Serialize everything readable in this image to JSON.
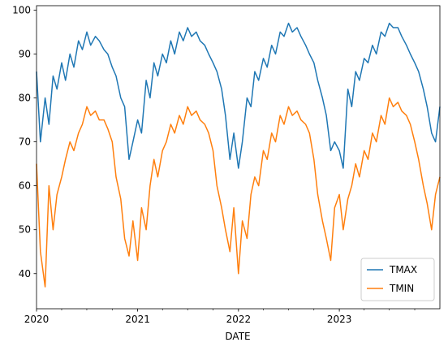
{
  "chart_data": {
    "type": "line",
    "xlabel": "DATE",
    "ylabel": "",
    "xlim": [
      "2020-01-01",
      "2023-12-31"
    ],
    "ylim": [
      32,
      101
    ],
    "yticks": [
      40,
      50,
      60,
      70,
      80,
      90,
      100
    ],
    "xticks": [
      {
        "date": "2020-01-01",
        "label": "2020"
      },
      {
        "date": "2021-01-01",
        "label": "2021"
      },
      {
        "date": "2022-01-01",
        "label": "2022"
      },
      {
        "date": "2023-01-01",
        "label": "2023"
      }
    ],
    "x_minor_ticks_months": [
      4,
      7,
      10
    ],
    "grid": false,
    "legend_position": "lower right",
    "series": [
      {
        "name": "TMAX",
        "color": "#1f77b4",
        "x": [
          "2020-01-01",
          "2020-01-15",
          "2020-02-01",
          "2020-02-15",
          "2020-03-01",
          "2020-03-15",
          "2020-04-01",
          "2020-04-15",
          "2020-05-01",
          "2020-05-15",
          "2020-06-01",
          "2020-06-15",
          "2020-07-01",
          "2020-07-15",
          "2020-08-01",
          "2020-08-15",
          "2020-09-01",
          "2020-09-15",
          "2020-10-01",
          "2020-10-15",
          "2020-11-01",
          "2020-11-15",
          "2020-12-01",
          "2020-12-15",
          "2021-01-01",
          "2021-01-15",
          "2021-02-01",
          "2021-02-15",
          "2021-03-01",
          "2021-03-15",
          "2021-04-01",
          "2021-04-15",
          "2021-05-01",
          "2021-05-15",
          "2021-06-01",
          "2021-06-15",
          "2021-07-01",
          "2021-07-15",
          "2021-08-01",
          "2021-08-15",
          "2021-09-01",
          "2021-09-15",
          "2021-10-01",
          "2021-10-15",
          "2021-11-01",
          "2021-11-15",
          "2021-12-01",
          "2021-12-15",
          "2022-01-01",
          "2022-01-15",
          "2022-02-01",
          "2022-02-15",
          "2022-03-01",
          "2022-03-15",
          "2022-04-01",
          "2022-04-15",
          "2022-05-01",
          "2022-05-15",
          "2022-06-01",
          "2022-06-15",
          "2022-07-01",
          "2022-07-15",
          "2022-08-01",
          "2022-08-15",
          "2022-09-01",
          "2022-09-15",
          "2022-10-01",
          "2022-10-15",
          "2022-11-01",
          "2022-11-15",
          "2022-12-01",
          "2022-12-15",
          "2023-01-01",
          "2023-01-15",
          "2023-02-01",
          "2023-02-15",
          "2023-03-01",
          "2023-03-15",
          "2023-04-01",
          "2023-04-15",
          "2023-05-01",
          "2023-05-15",
          "2023-06-01",
          "2023-06-15",
          "2023-07-01",
          "2023-07-15",
          "2023-08-01",
          "2023-08-15",
          "2023-09-01",
          "2023-09-15",
          "2023-10-01",
          "2023-10-15",
          "2023-11-01",
          "2023-11-15",
          "2023-12-01",
          "2023-12-15",
          "2023-12-31"
        ],
        "values": [
          86,
          70,
          80,
          74,
          85,
          82,
          88,
          84,
          90,
          87,
          93,
          91,
          95,
          92,
          94,
          93,
          91,
          90,
          87,
          85,
          80,
          78,
          66,
          70,
          75,
          72,
          84,
          80,
          88,
          85,
          90,
          88,
          93,
          90,
          95,
          93,
          96,
          94,
          95,
          93,
          92,
          90,
          88,
          86,
          82,
          76,
          66,
          72,
          64,
          70,
          80,
          78,
          86,
          84,
          89,
          87,
          92,
          90,
          95,
          94,
          97,
          95,
          96,
          94,
          92,
          90,
          88,
          84,
          80,
          76,
          68,
          70,
          68,
          64,
          82,
          78,
          86,
          84,
          89,
          88,
          92,
          90,
          95,
          94,
          97,
          96,
          96,
          94,
          92,
          90,
          88,
          86,
          82,
          78,
          72,
          70,
          78
        ]
      },
      {
        "name": "TMIN",
        "color": "#ff7f0e",
        "x": [
          "2020-01-01",
          "2020-01-15",
          "2020-02-01",
          "2020-02-15",
          "2020-03-01",
          "2020-03-15",
          "2020-04-01",
          "2020-04-15",
          "2020-05-01",
          "2020-05-15",
          "2020-06-01",
          "2020-06-15",
          "2020-07-01",
          "2020-07-15",
          "2020-08-01",
          "2020-08-15",
          "2020-09-01",
          "2020-09-15",
          "2020-10-01",
          "2020-10-15",
          "2020-11-01",
          "2020-11-15",
          "2020-12-01",
          "2020-12-15",
          "2021-01-01",
          "2021-01-15",
          "2021-02-01",
          "2021-02-15",
          "2021-03-01",
          "2021-03-15",
          "2021-04-01",
          "2021-04-15",
          "2021-05-01",
          "2021-05-15",
          "2021-06-01",
          "2021-06-15",
          "2021-07-01",
          "2021-07-15",
          "2021-08-01",
          "2021-08-15",
          "2021-09-01",
          "2021-09-15",
          "2021-10-01",
          "2021-10-15",
          "2021-11-01",
          "2021-11-15",
          "2021-12-01",
          "2021-12-15",
          "2022-01-01",
          "2022-01-15",
          "2022-02-01",
          "2022-02-15",
          "2022-03-01",
          "2022-03-15",
          "2022-04-01",
          "2022-04-15",
          "2022-05-01",
          "2022-05-15",
          "2022-06-01",
          "2022-06-15",
          "2022-07-01",
          "2022-07-15",
          "2022-08-01",
          "2022-08-15",
          "2022-09-01",
          "2022-09-15",
          "2022-10-01",
          "2022-10-15",
          "2022-11-01",
          "2022-11-15",
          "2022-12-01",
          "2022-12-15",
          "2023-01-01",
          "2023-01-15",
          "2023-02-01",
          "2023-02-15",
          "2023-03-01",
          "2023-03-15",
          "2023-04-01",
          "2023-04-15",
          "2023-05-01",
          "2023-05-15",
          "2023-06-01",
          "2023-06-15",
          "2023-07-01",
          "2023-07-15",
          "2023-08-01",
          "2023-08-15",
          "2023-09-01",
          "2023-09-15",
          "2023-10-01",
          "2023-10-15",
          "2023-11-01",
          "2023-11-15",
          "2023-12-01",
          "2023-12-15",
          "2023-12-31"
        ],
        "values": [
          65,
          45,
          37,
          60,
          50,
          58,
          62,
          66,
          70,
          68,
          72,
          74,
          78,
          76,
          77,
          75,
          75,
          73,
          70,
          62,
          57,
          48,
          44,
          52,
          43,
          55,
          50,
          60,
          66,
          62,
          68,
          70,
          74,
          72,
          76,
          74,
          78,
          76,
          77,
          75,
          74,
          72,
          68,
          60,
          55,
          50,
          45,
          55,
          40,
          52,
          48,
          58,
          62,
          60,
          68,
          66,
          72,
          70,
          76,
          74,
          78,
          76,
          77,
          75,
          74,
          72,
          66,
          58,
          52,
          48,
          43,
          55,
          58,
          50,
          57,
          60,
          65,
          62,
          68,
          66,
          72,
          70,
          76,
          74,
          80,
          78,
          79,
          77,
          76,
          74,
          70,
          66,
          60,
          56,
          50,
          58,
          62
        ]
      }
    ]
  }
}
